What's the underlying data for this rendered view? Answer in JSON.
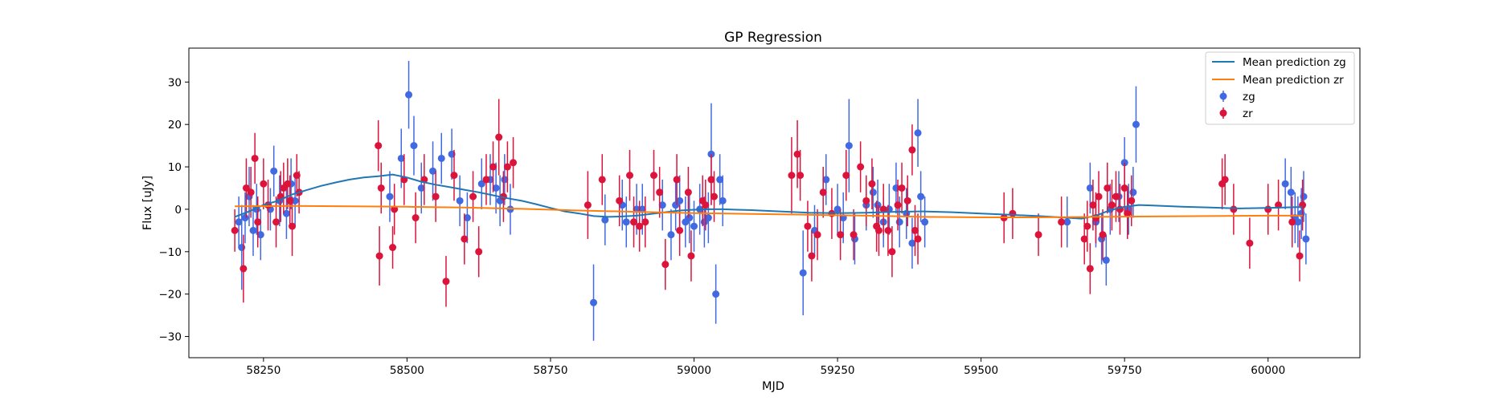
{
  "chart_data": {
    "type": "line",
    "title": "GP Regression",
    "xlabel": "MJD",
    "ylabel": "Flux [uJy]",
    "xlim": [
      58120,
      60160
    ],
    "ylim": [
      -35,
      38
    ],
    "xticks": [
      58250,
      58500,
      58750,
      59000,
      59250,
      59500,
      59750,
      60000
    ],
    "yticks": [
      -30,
      -20,
      -10,
      0,
      10,
      20,
      30
    ],
    "grid": false,
    "legend_position": "top-right",
    "colors": {
      "zg_line": "#1f77b4",
      "zr_line": "#ff7f0e",
      "zg_points": "#4169e1",
      "zr_points": "#dc143c"
    },
    "series": [
      {
        "name": "Mean prediction zg",
        "kind": "line",
        "x": [
          58200,
          58225,
          58250,
          58275,
          58300,
          58325,
          58350,
          58375,
          58400,
          58425,
          58450,
          58475,
          58500,
          58525,
          58550,
          58575,
          58600,
          58625,
          58650,
          58675,
          58700,
          58725,
          58750,
          58775,
          58800,
          58825,
          58850,
          58875,
          58900,
          58925,
          58950,
          58975,
          59000,
          59025,
          59050,
          59075,
          59100,
          59150,
          59200,
          59250,
          59300,
          59350,
          59400,
          59450,
          59500,
          59550,
          59600,
          59650,
          59675,
          59700,
          59725,
          59750,
          59775,
          59800,
          59850,
          59900,
          59950,
          60000,
          60050,
          60060
        ],
        "y": [
          -1.8,
          -0.5,
          1.0,
          2.0,
          3.5,
          4.5,
          5.5,
          6.3,
          7.0,
          7.5,
          7.8,
          8.2,
          7.5,
          6.5,
          5.8,
          5.2,
          4.6,
          4.0,
          3.3,
          2.6,
          2.0,
          1.2,
          0.3,
          -0.5,
          -1.0,
          -1.6,
          -1.8,
          -1.7,
          -1.5,
          -1.1,
          -0.7,
          -0.3,
          -0.1,
          0.0,
          0.0,
          -0.1,
          -0.2,
          -0.5,
          -0.8,
          -0.9,
          -0.8,
          -0.6,
          -0.5,
          -0.7,
          -1.0,
          -1.3,
          -1.6,
          -2.0,
          -2.2,
          -1.5,
          -0.2,
          0.6,
          1.0,
          0.9,
          0.6,
          0.4,
          0.2,
          0.3,
          0.5,
          0.5
        ]
      },
      {
        "name": "Mean prediction zr",
        "kind": "line",
        "x": [
          58200,
          58300,
          58400,
          58500,
          58600,
          58700,
          58800,
          58900,
          59000,
          59100,
          59200,
          59300,
          59400,
          59500,
          59600,
          59700,
          59800,
          59900,
          60000,
          60060
        ],
        "y": [
          0.7,
          0.8,
          0.7,
          0.6,
          0.4,
          0.1,
          -0.3,
          -0.6,
          -0.9,
          -1.1,
          -1.3,
          -1.5,
          -1.8,
          -1.9,
          -1.9,
          -1.8,
          -1.7,
          -1.6,
          -1.5,
          -1.5
        ]
      },
      {
        "name": "zg",
        "kind": "errorbar",
        "x": [
          58207,
          58212,
          58218,
          58225,
          58232,
          58238,
          58245,
          58262,
          58268,
          58278,
          58290,
          58298,
          58305,
          58470,
          58490,
          58503,
          58512,
          58525,
          58545,
          58560,
          58578,
          58592,
          58605,
          58630,
          58645,
          58655,
          58662,
          58670,
          58680,
          58825,
          58845,
          58875,
          58882,
          58900,
          58910,
          58945,
          58960,
          58968,
          58975,
          58985,
          58992,
          59000,
          59010,
          59018,
          59025,
          59030,
          59038,
          59045,
          59050,
          59190,
          59210,
          59230,
          59250,
          59260,
          59270,
          59280,
          59300,
          59312,
          59320,
          59330,
          59340,
          59352,
          59358,
          59370,
          59380,
          59390,
          59395,
          59402,
          59650,
          59690,
          59700,
          59710,
          59718,
          59725,
          59740,
          59750,
          59757,
          59765,
          59770,
          60030,
          60040,
          60047,
          60052,
          60058,
          60062,
          60066
        ],
        "y": [
          -3.0,
          -9.0,
          -2.0,
          3.0,
          -5.0,
          0.0,
          -6.0,
          0.0,
          9.0,
          2.0,
          -1.0,
          6.0,
          2.0,
          3.0,
          12.0,
          27.0,
          15.0,
          5.0,
          9.0,
          12.0,
          13.0,
          2.0,
          -2.0,
          6.0,
          7.0,
          5.0,
          2.0,
          7.0,
          0.0,
          -22.0,
          -2.5,
          1.0,
          -3.0,
          0.0,
          0.0,
          1.0,
          -6.0,
          1.0,
          2.0,
          -3.0,
          -2.0,
          -4.0,
          0.0,
          -3.0,
          -2.0,
          13.0,
          -20.0,
          7.0,
          2.0,
          -15.0,
          -5.0,
          7.0,
          0.0,
          -2.0,
          15.0,
          -7.0,
          1.0,
          4.0,
          1.0,
          -3.0,
          0.0,
          5.0,
          -3.0,
          -1.0,
          -8.0,
          18.0,
          3.0,
          -3.0,
          -3.0,
          5.0,
          -3.0,
          -7.0,
          -12.0,
          0.0,
          3.0,
          11.0,
          0.0,
          4.0,
          20.0,
          6.0,
          4.0,
          -2.0,
          -3.0,
          -1.0,
          3.0,
          -7.0
        ],
        "yerr": [
          6,
          10,
          6,
          7,
          6,
          6,
          6,
          5,
          6,
          6,
          6,
          6,
          6,
          6,
          7,
          8,
          7,
          6,
          7,
          6,
          6,
          6,
          6,
          6,
          6,
          6,
          6,
          6,
          6,
          9,
          6,
          6,
          6,
          6,
          6,
          6,
          6,
          6,
          6,
          6,
          6,
          6,
          6,
          6,
          6,
          12,
          7,
          6,
          6,
          10,
          6,
          6,
          6,
          6,
          11,
          6,
          6,
          6,
          6,
          6,
          6,
          6,
          6,
          6,
          6,
          8,
          6,
          6,
          6,
          6,
          6,
          6,
          6,
          6,
          6,
          6,
          6,
          6,
          9,
          6,
          6,
          6,
          6,
          6,
          6,
          6
        ]
      },
      {
        "name": "zr",
        "kind": "errorbar",
        "x": [
          58200,
          58215,
          58220,
          58228,
          58235,
          58240,
          58250,
          58258,
          58272,
          58280,
          58285,
          58292,
          58296,
          58300,
          58308,
          58312,
          58450,
          58452,
          58455,
          58475,
          58478,
          58495,
          58515,
          58530,
          58550,
          58568,
          58582,
          58600,
          58615,
          58625,
          58638,
          58650,
          58660,
          58668,
          58675,
          58685,
          58815,
          58840,
          58870,
          58888,
          58895,
          58905,
          58915,
          58930,
          58940,
          58950,
          58970,
          58975,
          58990,
          58995,
          59015,
          59020,
          59030,
          59035,
          59170,
          59180,
          59185,
          59198,
          59205,
          59215,
          59225,
          59240,
          59255,
          59265,
          59278,
          59290,
          59300,
          59310,
          59318,
          59322,
          59330,
          59338,
          59345,
          59355,
          59362,
          59372,
          59380,
          59385,
          59390,
          59540,
          59555,
          59600,
          59640,
          59680,
          59685,
          59690,
          59695,
          59700,
          59705,
          59712,
          59720,
          59728,
          59735,
          59742,
          59750,
          59755,
          59762,
          59920,
          59925,
          59940,
          59968,
          60000,
          60018,
          60042,
          60055,
          60060
        ],
        "y": [
          -5.0,
          -14.0,
          5.0,
          4.0,
          12.0,
          -3.0,
          6.0,
          1.0,
          -3.0,
          3.0,
          5.0,
          6.0,
          2.0,
          -4.0,
          8.0,
          4.0,
          15.0,
          -11.0,
          5.0,
          -9.0,
          0.0,
          7.0,
          -2.0,
          7.0,
          3.0,
          -17.0,
          8.0,
          -7.0,
          3.0,
          -10.0,
          7.0,
          10.0,
          17.0,
          3.0,
          10.0,
          11.0,
          1.0,
          7.0,
          2.0,
          8.0,
          -3.0,
          -4.0,
          -3.0,
          8.0,
          4.0,
          -13.0,
          7.0,
          -5.0,
          4.0,
          -11.0,
          2.0,
          1.0,
          7.0,
          3.0,
          8.0,
          13.0,
          8.0,
          -4.0,
          -11.0,
          -6.0,
          4.0,
          -1.0,
          -6.0,
          8.0,
          -6.0,
          10.0,
          2.0,
          6.0,
          -4.0,
          -5.0,
          0.0,
          -5.0,
          -10.0,
          1.0,
          5.0,
          2.0,
          14.0,
          -5.0,
          -7.0,
          -2.0,
          -1.0,
          -6.0,
          -3.0,
          -7.0,
          -4.0,
          -14.0,
          1.0,
          -2.0,
          3.0,
          -6.0,
          5.0,
          1.0,
          3.0,
          0.0,
          5.0,
          -1.0,
          2.0,
          6.0,
          7.0,
          0.0,
          -8.0,
          0.0,
          1.0,
          -3.0,
          -11.0,
          1.0
        ],
        "yerr": [
          5,
          8,
          7,
          6,
          6,
          6,
          6,
          6,
          6,
          6,
          6,
          6,
          6,
          7,
          5,
          5,
          6,
          7,
          6,
          5,
          6,
          6,
          6,
          6,
          6,
          6,
          6,
          6,
          6,
          6,
          6,
          6,
          9,
          6,
          6,
          6,
          8,
          6,
          6,
          6,
          6,
          6,
          6,
          6,
          6,
          6,
          6,
          6,
          6,
          6,
          6,
          6,
          6,
          6,
          9,
          8,
          6,
          6,
          6,
          6,
          6,
          6,
          6,
          6,
          6,
          6,
          6,
          6,
          6,
          6,
          6,
          6,
          6,
          6,
          6,
          6,
          6,
          6,
          6,
          6,
          6,
          5,
          6,
          6,
          6,
          6,
          6,
          6,
          6,
          6,
          6,
          6,
          6,
          6,
          6,
          6,
          6,
          6,
          6,
          6,
          6,
          6,
          6,
          6,
          6,
          6
        ]
      }
    ]
  }
}
